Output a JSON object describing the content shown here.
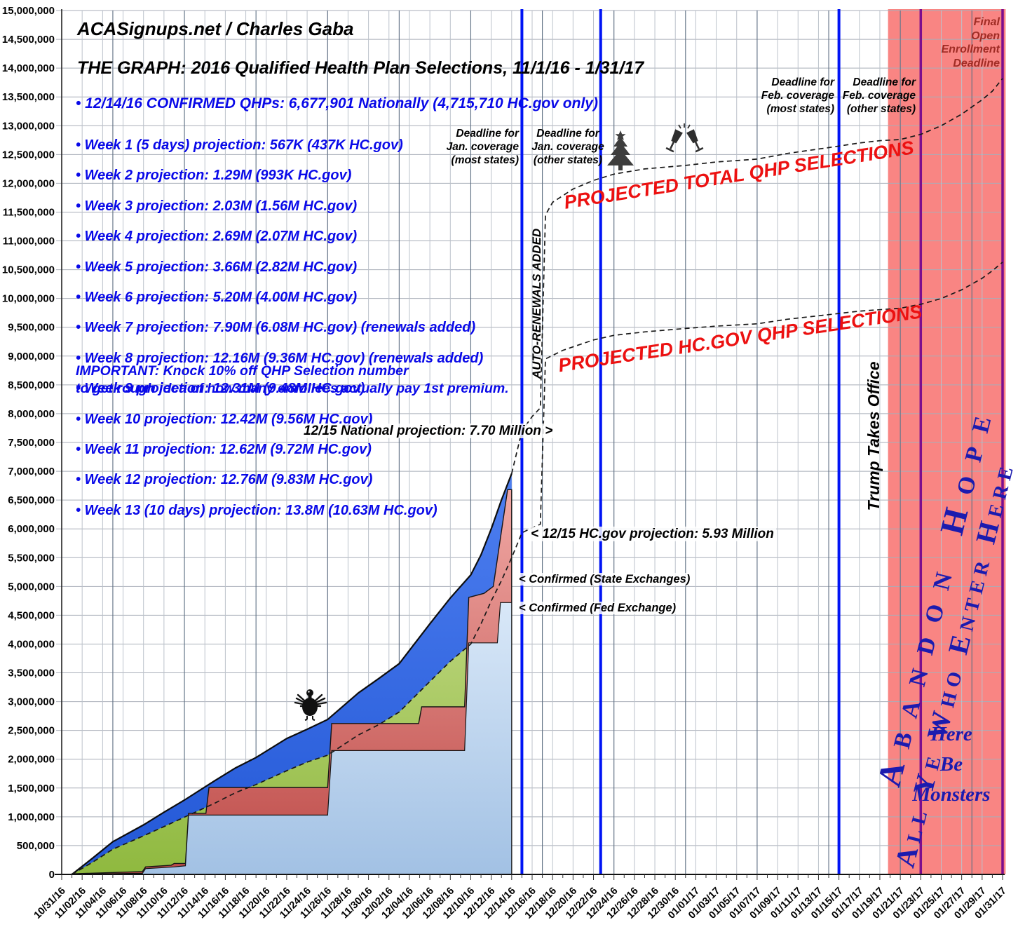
{
  "header": {
    "brand": "ACASignups.net / Charles Gaba",
    "title": "THE GRAPH: 2016 Qualified Health Plan Selections, 11/1/16 - 1/31/17",
    "confirmed_line": "• 12/14/16 CONFIRMED QHPs: 6,677,901 Nationally (4,715,710 HC.gov only)"
  },
  "projections": {
    "items": [
      "• Week 1 (5 days) projection: 567K (437K HC.gov)",
      "• Week 2 projection: 1.29M (993K HC.gov)",
      "• Week 3 projection: 2.03M (1.56M HC.gov)",
      "• Week 4 projection: 2.69M (2.07M HC.gov)",
      "• Week 5 projection: 3.66M (2.82M HC.gov)",
      "• Week 6 projection: 5.20M (4.00M HC.gov)",
      "• Week 7 projection: 7.90M (6.08M HC.gov) (renewals added)",
      "• Week 8 projection: 12.16M (9.36M HC.gov) (renewals added)",
      "• Week 9 projection: 12.31M (9.48M HC.gov)",
      "• Week 10 projection: 12.42M (9.56M HC.gov)",
      "• Week 11 projection: 12.62M (9.72M HC.gov)",
      "• Week 12 projection: 12.76M (9.83M HC.gov)",
      "• Week 13 (10 days) projection: 13.8M (10.63M HC.gov)"
    ],
    "important": "IMPORTANT: Knock 10% off QHP Selection number\nto get rough idea of how many enrollees actually pay 1st premium."
  },
  "annotations": {
    "jan_deadline_most": "Deadline for\nJan. coverage\n(most states)",
    "jan_deadline_other": "Deadline for\nJan. coverage\n(other states)",
    "feb_deadline_most": "Deadline for\nFeb. coverage\n(most states)",
    "feb_deadline_other": "Deadline for\nFeb. coverage\n(other states)",
    "final_deadline": "Final\nOpen\nEnrollment\nDeadline",
    "auto_renewals": "AUTO-RENEWALS ADDED",
    "projected_total": "PROJECTED TOTAL QHP SELECTIONS",
    "projected_hcgov": "PROJECTED HC.GOV QHP SELECTIONS",
    "national_1215": "12/15 National projection: 7.70 Million >",
    "hcgov_1215": "< 12/15 HC.gov projection: 5.93 Million",
    "confirmed_state": "< Confirmed (State Exchanges)",
    "confirmed_fed": "< Confirmed (Fed Exchange)",
    "trump": "Trump Takes Office",
    "abandon_line1": "Abandon Hope",
    "abandon_line2": "All Ye Who Enter Here",
    "monsters": "Here\nBe\nMonsters"
  },
  "icons": {
    "tree": "christmas-tree-icon",
    "champagne": "champagne-toast-icon",
    "turkey": "thanksgiving-turkey-icon"
  },
  "colors": {
    "bullet_blue": "#0909E8",
    "annotation_red": "#EC1111",
    "maroon": "#A02C25",
    "deadline_blue": "#0014F5",
    "deadline_purple": "#7C0D8E",
    "danger_zone": "#F98583",
    "area_royal": "#2E64E6",
    "area_green": "#A6C850",
    "area_red": "#C0504D",
    "area_ltblue": "#AEC9E8"
  },
  "chart_data": {
    "type": "area",
    "title": "2016 Qualified Health Plan Selections, 11/1/16 - 1/31/17",
    "x_axis": {
      "unit": "days since 10/31/16",
      "tick_step_days": 2,
      "range_days": [
        0,
        92
      ],
      "tick_labels": [
        "10/31/16",
        "11/02/16",
        "11/04/16",
        "11/06/16",
        "11/08/16",
        "11/10/16",
        "11/12/16",
        "11/14/16",
        "11/16/16",
        "11/18/16",
        "11/20/16",
        "11/22/16",
        "11/24/16",
        "11/26/16",
        "11/28/16",
        "11/30/16",
        "12/02/16",
        "12/04/16",
        "12/06/16",
        "12/08/16",
        "12/10/16",
        "12/12/16",
        "12/14/16",
        "12/16/16",
        "12/18/16",
        "12/20/16",
        "12/22/16",
        "12/24/16",
        "12/26/16",
        "12/28/16",
        "12/30/16",
        "01/01/17",
        "01/03/17",
        "01/05/17",
        "01/07/17",
        "01/09/17",
        "01/11/17",
        "01/13/17",
        "01/15/17",
        "01/17/17",
        "01/19/17",
        "01/21/17",
        "01/23/17",
        "01/25/17",
        "01/27/17",
        "01/29/17",
        "01/31/17"
      ],
      "weekly_gridline_days": [
        5,
        12,
        19,
        26,
        33,
        40,
        47,
        54,
        61,
        68,
        75,
        82,
        89
      ]
    },
    "y_axis": {
      "min": 0,
      "max": 15000000,
      "step": 500000,
      "tick_labels": [
        "15,000,000",
        "14,500,000",
        "14,000,000",
        "13,500,000",
        "13,000,000",
        "12,500,000",
        "12,000,000",
        "11,500,000",
        "11,000,000",
        "10,500,000",
        "10,000,000",
        "9,500,000",
        "9,000,000",
        "8,500,000",
        "8,000,000",
        "7,500,000",
        "7,000,000",
        "6,500,000",
        "6,000,000",
        "5,500,000",
        "5,000,000",
        "4,500,000",
        "4,000,000",
        "3,500,000",
        "3,000,000",
        "2,500,000",
        "2,000,000",
        "1,500,000",
        "1,000,000",
        "500,000",
        "0"
      ]
    },
    "series": [
      {
        "name": "national-total-confirmed-period",
        "style": "solid-edge",
        "fill": "royal",
        "points_day_millions": [
          [
            1,
            0
          ],
          [
            3,
            0.28
          ],
          [
            5,
            0.567
          ],
          [
            8,
            0.86
          ],
          [
            10,
            1.08
          ],
          [
            12,
            1.29
          ],
          [
            15,
            1.63
          ],
          [
            17,
            1.85
          ],
          [
            19,
            2.03
          ],
          [
            22,
            2.36
          ],
          [
            24,
            2.52
          ],
          [
            26,
            2.69
          ],
          [
            29,
            3.15
          ],
          [
            31,
            3.4
          ],
          [
            33,
            3.66
          ],
          [
            36,
            4.35
          ],
          [
            38,
            4.8
          ],
          [
            40,
            5.2
          ],
          [
            41,
            5.55
          ],
          [
            42,
            6.0
          ],
          [
            43,
            6.5
          ],
          [
            44,
            6.96
          ]
        ]
      },
      {
        "name": "national-total-projection-dashed",
        "style": "dashed",
        "fill": "none",
        "points_day_millions": [
          [
            44,
            6.96
          ],
          [
            45,
            7.7
          ],
          [
            46,
            7.95
          ],
          [
            46.8,
            8.1
          ],
          [
            47.3,
            11.45
          ],
          [
            48,
            11.67
          ],
          [
            50,
            11.9
          ],
          [
            52,
            12.05
          ],
          [
            54,
            12.16
          ],
          [
            57,
            12.25
          ],
          [
            61,
            12.31
          ],
          [
            64,
            12.37
          ],
          [
            68,
            12.42
          ],
          [
            71,
            12.52
          ],
          [
            75,
            12.62
          ],
          [
            78,
            12.7
          ],
          [
            80,
            12.74
          ],
          [
            82,
            12.76
          ],
          [
            84,
            12.85
          ],
          [
            86,
            13.0
          ],
          [
            88,
            13.2
          ],
          [
            90,
            13.45
          ],
          [
            91,
            13.6
          ],
          [
            92,
            13.82
          ]
        ]
      },
      {
        "name": "hcgov-projection-dashed",
        "style": "dashed",
        "fill": "green-confirmed-window",
        "points_day_millions": [
          [
            1,
            0
          ],
          [
            3,
            0.21
          ],
          [
            5,
            0.437
          ],
          [
            8,
            0.67
          ],
          [
            10,
            0.83
          ],
          [
            12,
            0.993
          ],
          [
            15,
            1.24
          ],
          [
            17,
            1.42
          ],
          [
            19,
            1.56
          ],
          [
            22,
            1.8
          ],
          [
            24,
            1.95
          ],
          [
            26,
            2.07
          ],
          [
            29,
            2.42
          ],
          [
            31,
            2.6
          ],
          [
            33,
            2.82
          ],
          [
            36,
            3.35
          ],
          [
            38,
            3.7
          ],
          [
            40,
            4.0
          ],
          [
            41,
            4.35
          ],
          [
            42,
            4.75
          ],
          [
            43,
            5.1
          ],
          [
            44,
            5.5
          ],
          [
            45,
            5.93
          ],
          [
            46,
            6.02
          ],
          [
            46.8,
            6.08
          ],
          [
            47.3,
            8.95
          ],
          [
            49,
            9.1
          ],
          [
            52,
            9.28
          ],
          [
            54,
            9.36
          ],
          [
            57,
            9.42
          ],
          [
            61,
            9.48
          ],
          [
            64,
            9.52
          ],
          [
            68,
            9.56
          ],
          [
            71,
            9.64
          ],
          [
            75,
            9.72
          ],
          [
            78,
            9.78
          ],
          [
            82,
            9.83
          ],
          [
            84,
            9.9
          ],
          [
            86,
            10.0
          ],
          [
            88,
            10.15
          ],
          [
            90,
            10.35
          ],
          [
            91,
            10.48
          ],
          [
            92,
            10.63
          ]
        ]
      },
      {
        "name": "confirmed-total-state-plus-fed",
        "style": "solid-edge",
        "fill": "red",
        "points_day_millions": [
          [
            1,
            0.01
          ],
          [
            7.9,
            0.05
          ],
          [
            8.2,
            0.13
          ],
          [
            10.7,
            0.16
          ],
          [
            11,
            0.19
          ],
          [
            12.1,
            0.19
          ],
          [
            12.4,
            1.06
          ],
          [
            14.1,
            1.06
          ],
          [
            14.4,
            1.51
          ],
          [
            26.0,
            1.51
          ],
          [
            26.4,
            2.62
          ],
          [
            34.9,
            2.62
          ],
          [
            35.2,
            2.91
          ],
          [
            39.4,
            2.91
          ],
          [
            39.8,
            4.81
          ],
          [
            41.3,
            4.88
          ],
          [
            42.2,
            5.0
          ],
          [
            43.6,
            6.68
          ],
          [
            44,
            6.68
          ]
        ]
      },
      {
        "name": "confirmed-fed-exchange",
        "style": "solid-edge",
        "fill": "ltblue",
        "points_day_millions": [
          [
            1,
            0.005
          ],
          [
            7.9,
            0.02
          ],
          [
            8.2,
            0.1
          ],
          [
            11,
            0.13
          ],
          [
            12.1,
            0.15
          ],
          [
            12.4,
            1.03
          ],
          [
            26.0,
            1.03
          ],
          [
            26.4,
            2.15
          ],
          [
            39.4,
            2.15
          ],
          [
            39.8,
            4.02
          ],
          [
            42.6,
            4.02
          ],
          [
            42.9,
            4.72
          ],
          [
            44,
            4.72
          ]
        ]
      }
    ],
    "key_values": {
      "confirmed_national": 6677901,
      "confirmed_hcgov": 4715710,
      "projection_1215_national_millions": 7.7,
      "projection_1215_hcgov_millions": 5.93,
      "final_projection_national_millions": 13.8,
      "final_projection_hcgov_millions": 10.63
    },
    "events": [
      {
        "type": "vline",
        "day": 45,
        "color": "blue",
        "label": "Deadline for Jan. coverage (most states)"
      },
      {
        "type": "vline",
        "day": 52.7,
        "color": "blue",
        "label": "Deadline for Jan. coverage (other states)"
      },
      {
        "type": "vline",
        "day": 76,
        "color": "blue",
        "label": "Deadline for Feb. coverage (most states)"
      },
      {
        "type": "vline",
        "day": 84,
        "color": "purple",
        "label": "Deadline for Feb. coverage (other states)"
      },
      {
        "type": "vline",
        "day": 92,
        "color": "purple",
        "label": "Final Open Enrollment Deadline"
      },
      {
        "type": "region",
        "from_day": 80.8,
        "to_day": 92.3,
        "label": "Abandon Hope / Here Be Monsters zone"
      }
    ],
    "legend_position": "none",
    "grid": true
  }
}
